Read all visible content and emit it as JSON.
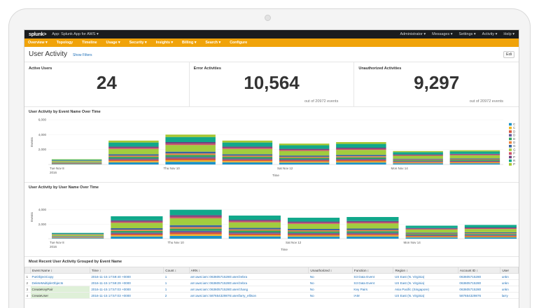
{
  "topbar": {
    "logo": "splunk>",
    "app_name": "App: Splunk App for AWS ▾",
    "right_items": [
      "Administrator ▾",
      "Messages ▾",
      "Settings ▾",
      "Activity ▾",
      "Help ▾"
    ]
  },
  "nav": [
    "Overview ▾",
    "Topology",
    "Timeline",
    "Usage ▾",
    "Security ▾",
    "Insights ▾",
    "Billing ▾",
    "Search ▾",
    "Configure"
  ],
  "page": {
    "title": "User Activity",
    "hide_filters": "Show Filters",
    "edit": "Edi"
  },
  "kpis": [
    {
      "title": "Active Users",
      "value": "24",
      "sub": ""
    },
    {
      "title": "Error Activities",
      "value": "10,564",
      "sub": "out of 20972 events"
    },
    {
      "title": "Unauthorized Activities",
      "value": "9,297",
      "sub": "out of 20972 events"
    }
  ],
  "chart_data": [
    {
      "type": "bar",
      "title": "User Activity by Event Name Over Time",
      "xlabel": "Time",
      "ylabel": "Events",
      "ylim": [
        0,
        6000
      ],
      "y_ticks": [
        "6,000",
        "4,000",
        "2,000"
      ],
      "x_tick_labels": [
        "Tue Nov 8\n2016",
        "Thu Nov 10",
        "Sat Nov 12",
        "Mon Nov 14"
      ],
      "categories": [
        "Nov 8",
        "Nov 9",
        "Nov 10",
        "Nov 11",
        "Nov 12",
        "Nov 13",
        "Nov 14",
        "Nov 15"
      ],
      "values": [
        700,
        3200,
        4000,
        3200,
        2800,
        3000,
        1800,
        1900
      ],
      "legend_entries": [
        "C",
        "C",
        "D",
        "D",
        "D",
        "D",
        "G",
        "G",
        "P",
        "P",
        "R",
        "P"
      ],
      "legend_placement": "right",
      "colors": [
        "#1e93c6",
        "#f2b827",
        "#d6563c",
        "#6a5c9e",
        "#31a35f",
        "#ed8440",
        "#3863a0",
        "#a2cc3e",
        "#cc5068",
        "#73427f",
        "#11a88b",
        "#a6c730"
      ]
    },
    {
      "type": "bar",
      "title": "User Activity by User Name Over Time",
      "xlabel": "Time",
      "ylabel": "Events",
      "ylim": [
        0,
        6000
      ],
      "y_ticks": [
        "4,000",
        "2,000"
      ],
      "x_tick_labels": [
        "Tue Nov 8\n2016",
        "Thu Nov 10",
        "Sat Nov 12",
        "Mon Nov 14"
      ],
      "categories": [
        "Nov 8",
        "Nov 9",
        "Nov 10",
        "Nov 11",
        "Nov 12",
        "Nov 13",
        "Nov 14",
        "Nov 15"
      ],
      "values": [
        800,
        3100,
        4000,
        3200,
        2900,
        3000,
        1800,
        1900
      ],
      "colors": [
        "#1e93c6",
        "#f2b827",
        "#d6563c",
        "#6a5c9e",
        "#31a35f",
        "#ed8440",
        "#3863a0",
        "#a2cc3e",
        "#cc5068",
        "#73427f",
        "#11a88b"
      ]
    }
  ],
  "table": {
    "title": "Most Recent User Activity Grouped by Event Name",
    "headers": [
      "",
      "Event Name ↕",
      "Time ↕",
      "Count ↕",
      "ARN ↕",
      "Unauthorized ↕",
      "Function ↕",
      "Region ↕",
      "Account ID ↕",
      "User"
    ],
    "rows": [
      [
        "1",
        "PutObjectCopy",
        "2016-11-15 17:59:40 +0000",
        "1",
        "arn:aws:iam::063605715280:user/zebra",
        "No",
        "S3 Data Event",
        "US East (N. Virginia)",
        "063605715280",
        "unkn"
      ],
      [
        "2",
        "DeleteMultipleObjects",
        "2016-11-15 17:59:29 +0000",
        "1",
        "arn:aws:iam::063605715280:user/zebra",
        "No",
        "S3 Data Event",
        "US East (N. Virginia)",
        "063605715280",
        "unkn"
      ],
      [
        "3",
        "CreateKeyPair",
        "2016-11-15 17:57:03 +0000",
        "1",
        "arn:aws:iam::063605715280:user/chang",
        "No",
        "Key Pairs",
        "Asia Pacific (Singapore)",
        "063605715280",
        "unkn"
      ],
      [
        "4",
        "CreateUser",
        "2016-11-15 17:57:03 +0000",
        "2",
        "arn:aws:iam::587654329876:user/larry_ellison",
        "No",
        "IAM",
        "US East (N. Virginia)",
        "587654329876",
        "larry"
      ]
    ]
  }
}
